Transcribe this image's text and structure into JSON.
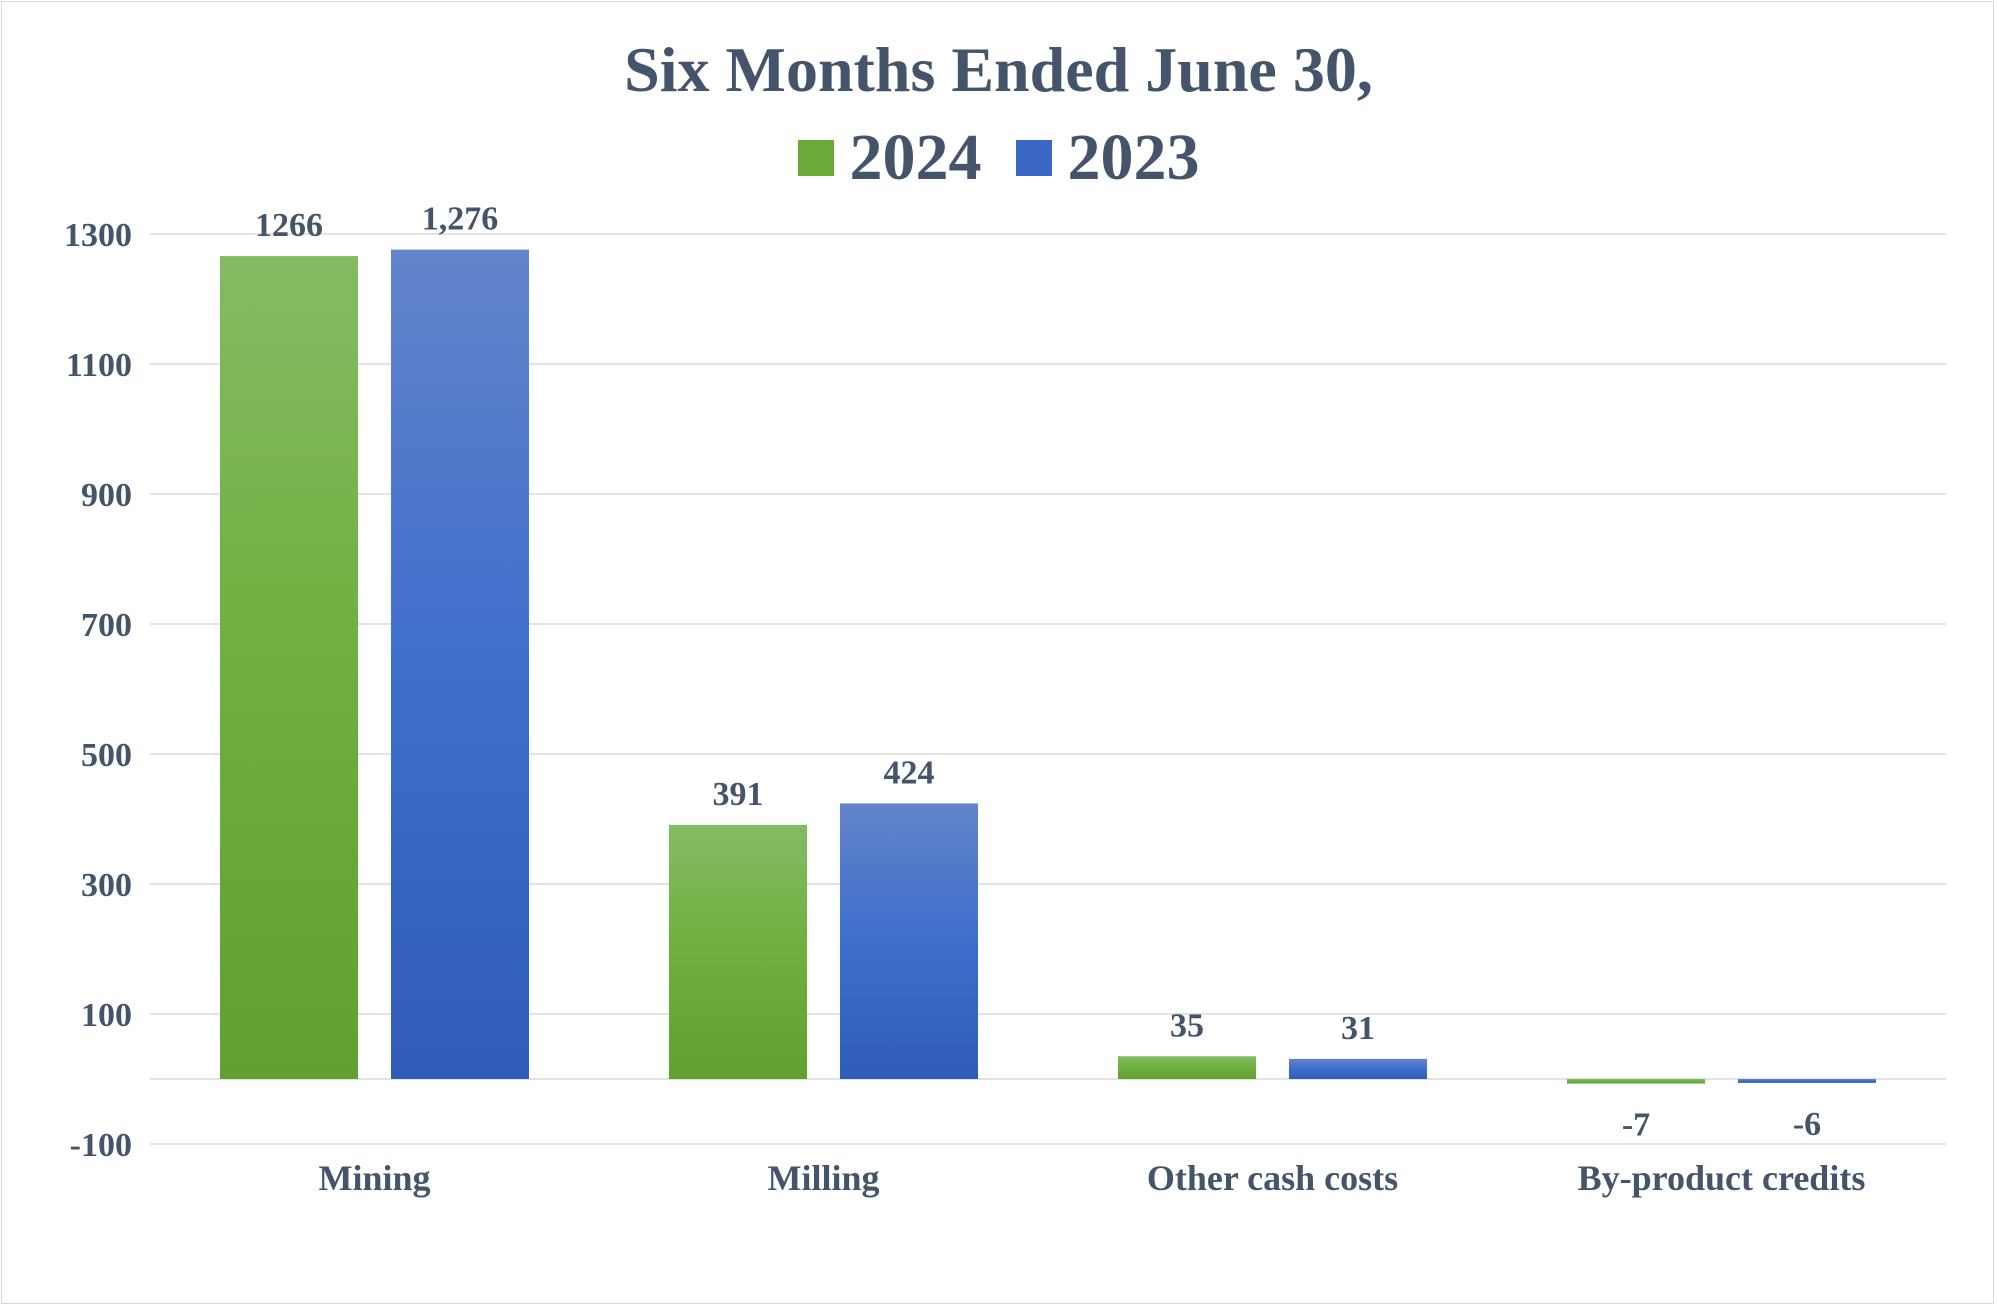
{
  "chart_data": {
    "type": "bar",
    "title": "Six Months Ended June 30,",
    "categories": [
      "Mining",
      "Milling",
      "Other cash costs",
      "By-product credits"
    ],
    "series": [
      {
        "name": "2024",
        "values": [
          1266,
          391,
          35,
          -7
        ],
        "labels": [
          "1266",
          "391",
          "35",
          "-7"
        ],
        "color": "#6aaa3a"
      },
      {
        "name": "2023",
        "values": [
          1276,
          424,
          31,
          -6
        ],
        "labels": [
          "1,276",
          "424",
          "31",
          "-6"
        ],
        "color": "#3a68c4"
      }
    ],
    "yticks": [
      "1300",
      "1100",
      "900",
      "700",
      "500",
      "300",
      "100",
      "-100"
    ],
    "ylim": [
      -100,
      1300
    ],
    "grid": true,
    "legend_position": "top-center",
    "xlabel": "",
    "ylabel": ""
  }
}
